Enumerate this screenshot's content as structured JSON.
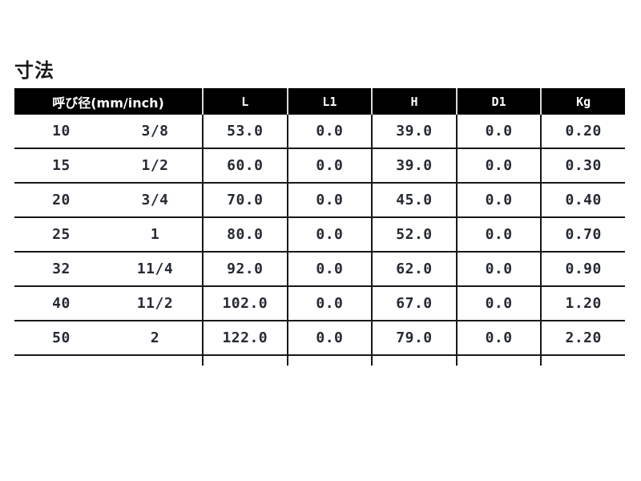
{
  "page": {
    "title": "寸法"
  },
  "table": {
    "header": {
      "dia_label": "呼び径(mm/inch)",
      "cols": [
        "L",
        "L1",
        "H",
        "D1",
        "Kg"
      ]
    },
    "rows": [
      {
        "mm": "10",
        "inch": "3/8",
        "L": "53.0",
        "L1": "0.0",
        "H": "39.0",
        "D1": "0.0",
        "Kg": "0.20"
      },
      {
        "mm": "15",
        "inch": "1/2",
        "L": "60.0",
        "L1": "0.0",
        "H": "39.0",
        "D1": "0.0",
        "Kg": "0.30"
      },
      {
        "mm": "20",
        "inch": "3/4",
        "L": "70.0",
        "L1": "0.0",
        "H": "45.0",
        "D1": "0.0",
        "Kg": "0.40"
      },
      {
        "mm": "25",
        "inch": "1",
        "L": "80.0",
        "L1": "0.0",
        "H": "52.0",
        "D1": "0.0",
        "Kg": "0.70"
      },
      {
        "mm": "32",
        "inch": "11/4",
        "L": "92.0",
        "L1": "0.0",
        "H": "62.0",
        "D1": "0.0",
        "Kg": "0.90"
      },
      {
        "mm": "40",
        "inch": "11/2",
        "L": "102.0",
        "L1": "0.0",
        "H": "67.0",
        "D1": "0.0",
        "Kg": "1.20"
      },
      {
        "mm": "50",
        "inch": "2",
        "L": "122.0",
        "L1": "0.0",
        "H": "79.0",
        "D1": "0.0",
        "Kg": "2.20"
      }
    ],
    "colors": {
      "header_bg": "#000000",
      "header_text": "#ffffff",
      "header_divider": "#d8d8d8",
      "grid_line": "#17181c",
      "value_text": "#262a33",
      "page_bg": "#ffffff"
    }
  },
  "chart_data": {
    "type": "table",
    "title": "寸法",
    "columns": [
      "呼び径 mm",
      "呼び径 inch",
      "L",
      "L1",
      "H",
      "D1",
      "Kg"
    ],
    "rows": [
      [
        "10",
        "3/8",
        53.0,
        0.0,
        39.0,
        0.0,
        0.2
      ],
      [
        "15",
        "1/2",
        60.0,
        0.0,
        39.0,
        0.0,
        0.3
      ],
      [
        "20",
        "3/4",
        70.0,
        0.0,
        45.0,
        0.0,
        0.4
      ],
      [
        "25",
        "1",
        80.0,
        0.0,
        52.0,
        0.0,
        0.7
      ],
      [
        "32",
        "11/4",
        92.0,
        0.0,
        62.0,
        0.0,
        0.9
      ],
      [
        "40",
        "11/2",
        102.0,
        0.0,
        67.0,
        0.0,
        1.2
      ],
      [
        "50",
        "2",
        122.0,
        0.0,
        79.0,
        0.0,
        2.2
      ]
    ],
    "layout": {
      "header_style": "black-bar",
      "grid": "horizontal-and-vertical-rules",
      "legend": "none"
    }
  }
}
